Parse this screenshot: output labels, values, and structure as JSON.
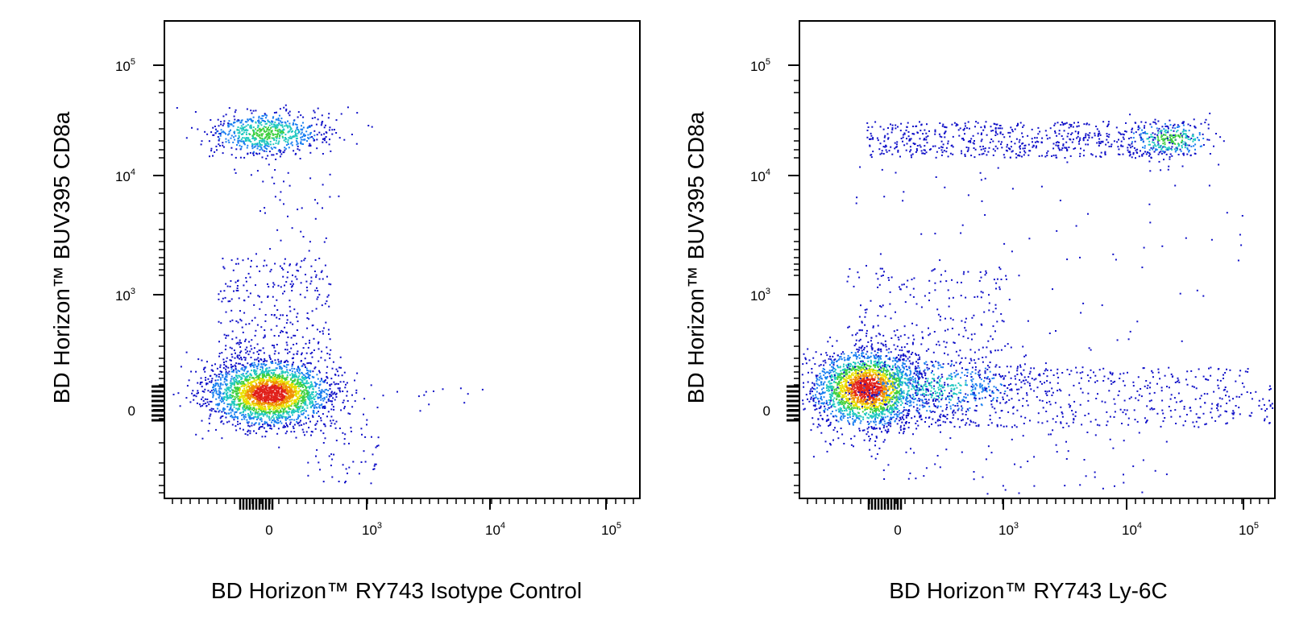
{
  "figure": {
    "panels": [
      {
        "id": "left",
        "xlabel": "BD Horizon™ RY743  Isotype Control",
        "ylabel": "BD Horizon™ BUV395  CD8a"
      },
      {
        "id": "right",
        "xlabel": "BD Horizon™ RY743  Ly-6C",
        "ylabel": "BD Horizon™ BUV395  CD8a"
      }
    ]
  },
  "chart_data": [
    {
      "type": "scatter",
      "title": "",
      "xlabel": "BD Horizon™ RY743  Isotype Control",
      "ylabel": "BD Horizon™ BUV395  CD8a",
      "x_scale": "biexponential",
      "y_scale": "biexponential",
      "x_tick_labels": [
        "0",
        "10^3",
        "10^4",
        "10^5"
      ],
      "y_tick_labels": [
        "0",
        "10^3",
        "10^4",
        "10^5"
      ],
      "grid": false,
      "legend": "none",
      "colormap": "density (blue → cyan → green → yellow → red)",
      "populations": [
        {
          "name_visible": false,
          "center": [
            50,
            20
          ],
          "x_spread": "-300..700",
          "y_spread": "-300..1200",
          "relative_density": "high"
        },
        {
          "name_visible": false,
          "center": [
            100,
            18000
          ],
          "x_spread": "-300..600",
          "y_spread": "8000..35000",
          "relative_density": "medium"
        }
      ]
    },
    {
      "type": "scatter",
      "title": "",
      "xlabel": "BD Horizon™ RY743  Ly-6C",
      "ylabel": "BD Horizon™ BUV395  CD8a",
      "x_scale": "biexponential",
      "y_scale": "biexponential",
      "x_tick_labels": [
        "0",
        "10^3",
        "10^4",
        "10^5"
      ],
      "y_tick_labels": [
        "0",
        "10^3",
        "10^4",
        "10^5"
      ],
      "grid": false,
      "legend": "none",
      "colormap": "density (blue → cyan → green → yellow → red)",
      "populations": [
        {
          "name_visible": false,
          "center": [
            0,
            20
          ],
          "x_spread": "-300..600",
          "y_spread": "-300..1000",
          "relative_density": "high"
        },
        {
          "name_visible": false,
          "center": [
            5000,
            50
          ],
          "x_spread": "500..150000",
          "y_spread": "-200..500",
          "relative_density": "low"
        },
        {
          "name_visible": false,
          "center": [
            30000,
            18000
          ],
          "x_spread": "-100..80000",
          "y_spread": "9000..30000",
          "relative_density": "medium"
        }
      ]
    }
  ]
}
